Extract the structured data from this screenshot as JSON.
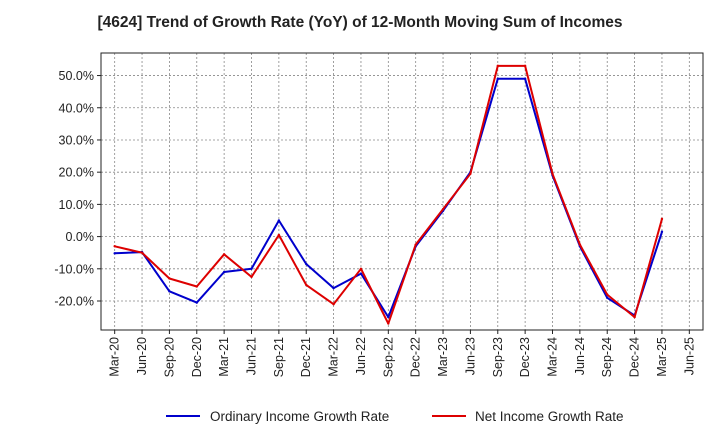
{
  "chart_data": {
    "type": "line",
    "title": "[4624]  Trend of Growth Rate (YoY) of 12-Month Moving Sum of Incomes",
    "xlabel": "",
    "ylabel": "",
    "x": [
      "Mar-20",
      "Jun-20",
      "Sep-20",
      "Dec-20",
      "Mar-21",
      "Jun-21",
      "Sep-21",
      "Dec-21",
      "Mar-22",
      "Jun-22",
      "Sep-22",
      "Dec-22",
      "Mar-23",
      "Jun-23",
      "Sep-23",
      "Dec-23",
      "Mar-24",
      "Jun-24",
      "Sep-24",
      "Dec-24",
      "Mar-25",
      "Jun-25"
    ],
    "ylim": [
      -29,
      57
    ],
    "yticks": [
      -20,
      -10,
      0,
      10,
      20,
      30,
      40,
      50
    ],
    "ytick_labels": [
      "-20.0%",
      "-10.0%",
      "0.0%",
      "10.0%",
      "20.0%",
      "30.0%",
      "40.0%",
      "50.0%"
    ],
    "grid": true,
    "legend_position": "bottom",
    "series": [
      {
        "name": "Ordinary Income Growth Rate",
        "color": "#0000cc",
        "values": [
          -5.2,
          -4.8,
          -17.0,
          -20.5,
          -11.0,
          -10.0,
          5.0,
          -8.5,
          -16.0,
          -11.5,
          -25.0,
          -3.0,
          8.0,
          20.0,
          49.0,
          49.0,
          19.0,
          -3.0,
          -19.0,
          -24.5,
          1.5,
          null
        ]
      },
      {
        "name": "Net Income Growth Rate",
        "color": "#dd0000",
        "values": [
          -3.0,
          -5.0,
          -13.0,
          -15.5,
          -5.5,
          -12.5,
          0.5,
          -15.0,
          -21.0,
          -10.0,
          -27.0,
          -2.5,
          8.5,
          19.5,
          53.0,
          53.0,
          19.5,
          -2.5,
          -18.0,
          -25.0,
          5.5,
          null
        ]
      }
    ]
  }
}
